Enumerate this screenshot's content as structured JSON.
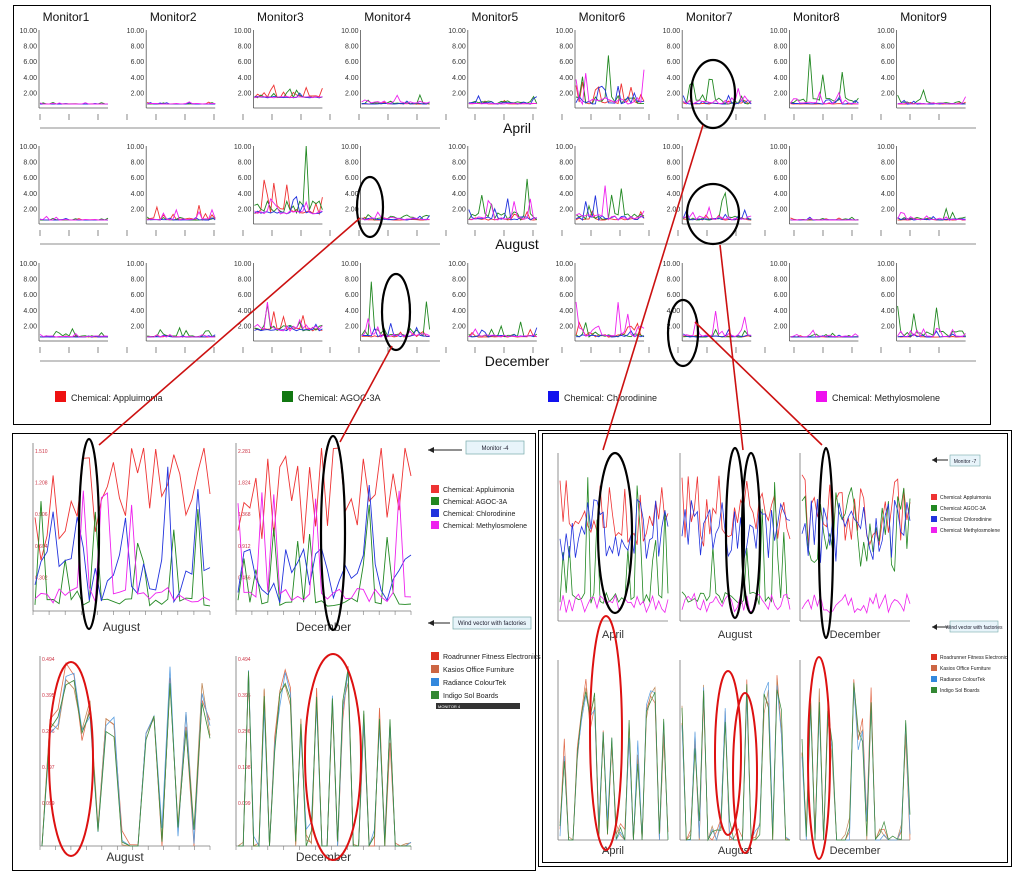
{
  "overview": {
    "monitors": [
      "Monitor1",
      "Monitor2",
      "Monitor3",
      "Monitor4",
      "Monitor5",
      "Monitor6",
      "Monitor7",
      "Monitor8",
      "Monitor9"
    ],
    "months": [
      "April",
      "August",
      "December"
    ],
    "y_ticks": [
      "10.00",
      "8.00",
      "6.00",
      "4.00",
      "2.00"
    ],
    "legend": [
      {
        "label": "Chemical: Appluimonia",
        "color": "#ee1111"
      },
      {
        "label": "Chemical: AGOC-3A",
        "color": "#117711"
      },
      {
        "label": "Chemical: Chlorodinine",
        "color": "#1111ee"
      },
      {
        "label": "Chemical: Methylosmolene",
        "color": "#ee11ee"
      }
    ]
  },
  "detail_monitor4": {
    "title": "Monitor -4",
    "wind_title": "Wind vector with factories",
    "chem_months": [
      "August",
      "December"
    ],
    "wind_months": [
      "August",
      "December"
    ],
    "chem_yticks_left": [
      "1.510",
      "1.208",
      "0.906",
      "0.604",
      "0.302"
    ],
    "chem_yticks_right": [
      "2.281",
      "1.824",
      "1.368",
      "0.912",
      "0.456"
    ],
    "wind_yticks_left": [
      "0.494",
      "0.395",
      "0.296",
      "0.197",
      "0.099"
    ],
    "wind_yticks_right": [
      "0.494",
      "0.395",
      "0.296",
      "0.198",
      "0.099"
    ],
    "chem_legend": [
      "Chemical: Appluimonia",
      "Chemical: AGOC-3A",
      "Chemical: Chlorodinine",
      "Chemical: Methylosmolene"
    ],
    "factory_legend": [
      "Roadrunner Fitness Electronics",
      "Kasios Office Furniture",
      "Radiance ColourTek",
      "Indigo Sol Boards"
    ],
    "dropdown_value": "MONITOR 4"
  },
  "detail_monitor7": {
    "title": "Monitor -7",
    "wind_title": "Wind vector with factories",
    "chem_months": [
      "April",
      "August",
      "December"
    ],
    "wind_months": [
      "April",
      "August",
      "December"
    ],
    "chem_legend": [
      "Chemical: Appluimonia",
      "Chemical: AGOC-3A",
      "Chemical: Chlorodinine",
      "Chemical: Methylosmolene"
    ],
    "factory_legend": [
      "Roadrunner Fitness Electronic",
      "Kasios Office Furniture",
      "Radiance ColourTek",
      "Indigo Sol Boards"
    ]
  },
  "colors": {
    "chem": [
      "#ee3333",
      "#228822",
      "#2233dd",
      "#ee22ee"
    ],
    "factory": [
      "#e06a4a",
      "#c08a5a",
      "#5a9ee0",
      "#3a8a3a"
    ],
    "swatch_factory": [
      "#dd3322",
      "#cc6644",
      "#3388dd",
      "#338833"
    ],
    "highlight_black": "#000000",
    "highlight_red": "#dd1111"
  },
  "chart_data": [
    {
      "type": "line",
      "title": "",
      "series": [
        {
          "name": "Chemical: Appluimonia"
        },
        {
          "name": "Chemical: AGOC-3A"
        },
        {
          "name": "Chemical: Chlorodinine"
        },
        {
          "name": "Chemical: Methylosmolene"
        }
      ],
      "ylim": [
        0,
        10
      ],
      "rows": [
        "April",
        "August",
        "December"
      ],
      "columns": [
        "Monitor1",
        "Monitor2",
        "Monitor3",
        "Monitor4",
        "Monitor5",
        "Monitor6",
        "Monitor7",
        "Monitor8",
        "Monitor9"
      ]
    },
    {
      "type": "line",
      "title": "Monitor -4",
      "series": [
        {
          "name": "Chemical: Appluimonia"
        },
        {
          "name": "Chemical: AGOC-3A"
        },
        {
          "name": "Chemical: Chlorodinine"
        },
        {
          "name": "Chemical: Methylosmolene"
        }
      ],
      "panels": [
        "August",
        "December"
      ]
    },
    {
      "type": "line",
      "title": "Wind vector with factories",
      "series": [
        {
          "name": "Roadrunner Fitness Electronics"
        },
        {
          "name": "Kasios Office Furniture"
        },
        {
          "name": "Radiance ColourTek"
        },
        {
          "name": "Indigo Sol Boards"
        }
      ],
      "panels": [
        "August",
        "December"
      ]
    },
    {
      "type": "line",
      "title": "Monitor -7",
      "series": [
        {
          "name": "Chemical: Appluimonia"
        },
        {
          "name": "Chemical: AGOC-3A"
        },
        {
          "name": "Chemical: Chlorodinine"
        },
        {
          "name": "Chemical: Methylosmolene"
        }
      ],
      "panels": [
        "April",
        "August",
        "December"
      ]
    }
  ]
}
